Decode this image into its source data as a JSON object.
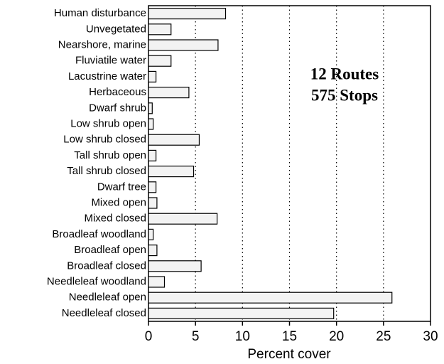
{
  "chart_data": {
    "type": "bar",
    "orientation": "horizontal",
    "categories": [
      "Human disturbance",
      "Unvegetated",
      "Nearshore, marine",
      "Fluviatile water",
      "Lacustrine water",
      "Herbaceous",
      "Dwarf shrub",
      "Low shrub open",
      "Low shrub closed",
      "Tall shrub open",
      "Tall shrub closed",
      "Dwarf tree",
      "Mixed open",
      "Mixed closed",
      "Broadleaf woodland",
      "Broadleaf open",
      "Broadleaf closed",
      "Needleleaf woodland",
      "Needleleaf open",
      "Needleleaf closed"
    ],
    "values": [
      8.2,
      2.4,
      7.4,
      2.4,
      0.8,
      4.3,
      0.4,
      0.5,
      5.4,
      0.8,
      4.8,
      0.8,
      0.9,
      7.3,
      0.5,
      0.9,
      5.6,
      1.7,
      25.9,
      19.7
    ],
    "color": "#f3f3f3",
    "xlabel": "Percent cover",
    "xlim": [
      0,
      30
    ],
    "xticks": [
      0,
      5,
      10,
      15,
      20,
      25,
      30
    ],
    "grid": true,
    "annotations": [
      "12 Routes",
      "575 Stops"
    ]
  }
}
